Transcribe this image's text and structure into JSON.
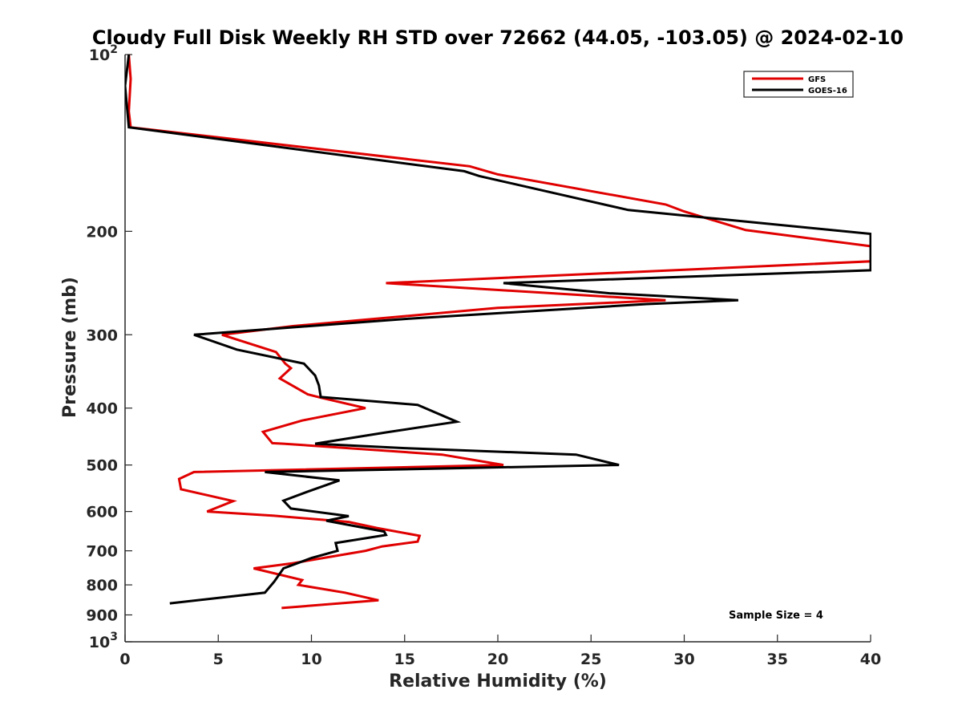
{
  "chart_data": {
    "type": "line",
    "title": "Cloudy Full Disk Weekly RH STD over 72662 (44.05, -103.05) @ 2024-02-10",
    "xlabel": "Relative Humidity (%)",
    "ylabel": "Pressure (mb)",
    "xlim": [
      0,
      40
    ],
    "ylim": [
      100,
      1000
    ],
    "y_scale": "log",
    "y_reversed": true,
    "x_ticks": [
      "0",
      "5",
      "10",
      "15",
      "20",
      "25",
      "30",
      "35",
      "40"
    ],
    "y_ticks": [
      {
        "value": 100,
        "base": "10",
        "exp": "2"
      },
      {
        "value": 200,
        "label": "200"
      },
      {
        "value": 300,
        "label": "300"
      },
      {
        "value": 400,
        "label": "400"
      },
      {
        "value": 500,
        "label": "500"
      },
      {
        "value": 600,
        "label": "600"
      },
      {
        "value": 700,
        "label": "700"
      },
      {
        "value": 800,
        "label": "800"
      },
      {
        "value": 900,
        "label": "900"
      },
      {
        "value": 1000,
        "base": "10",
        "exp": "3"
      }
    ],
    "legend_position": "top-right",
    "annotation": "Sample Size = 4",
    "series": [
      {
        "name": "GFS",
        "color": "#e00000",
        "points": [
          [
            0.2,
            100
          ],
          [
            0.3,
            110
          ],
          [
            0.2,
            125
          ],
          [
            0.3,
            133
          ],
          [
            18.5,
            155
          ],
          [
            20.0,
            160
          ],
          [
            29.0,
            180
          ],
          [
            30.0,
            185
          ],
          [
            33.3,
            199
          ],
          [
            40.0,
            212
          ],
          [
            40.0,
            225
          ],
          [
            14.0,
            245
          ],
          [
            29.0,
            262
          ],
          [
            20.0,
            270
          ],
          [
            9.0,
            290
          ],
          [
            5.2,
            300
          ],
          [
            8.1,
            321
          ],
          [
            8.6,
            336
          ],
          [
            8.9,
            342
          ],
          [
            8.3,
            356
          ],
          [
            9.8,
            379
          ],
          [
            10.5,
            384
          ],
          [
            12.9,
            400
          ],
          [
            9.5,
            420
          ],
          [
            7.4,
            439
          ],
          [
            7.9,
            459
          ],
          [
            8.5,
            460
          ],
          [
            17.0,
            480
          ],
          [
            20.3,
            500
          ],
          [
            3.7,
            514
          ],
          [
            2.9,
            528
          ],
          [
            3.0,
            550
          ],
          [
            5.8,
            576
          ],
          [
            4.4,
            600
          ],
          [
            8.0,
            610
          ],
          [
            12.0,
            625
          ],
          [
            13.5,
            640
          ],
          [
            15.8,
            660
          ],
          [
            15.7,
            675
          ],
          [
            13.8,
            688
          ],
          [
            12.9,
            700
          ],
          [
            9.0,
            735
          ],
          [
            6.9,
            750
          ],
          [
            9.5,
            785
          ],
          [
            9.3,
            800
          ],
          [
            11.8,
            825
          ],
          [
            13.6,
            850
          ],
          [
            8.4,
            876
          ]
        ]
      },
      {
        "name": "GOES-16",
        "color": "#000000",
        "points": [
          [
            0.2,
            100
          ],
          [
            0.0,
            113
          ],
          [
            0.2,
            133
          ],
          [
            18.2,
            158
          ],
          [
            19.0,
            161
          ],
          [
            27.0,
            184
          ],
          [
            40.0,
            202
          ],
          [
            40.0,
            233
          ],
          [
            20.3,
            245
          ],
          [
            26.0,
            255
          ],
          [
            32.9,
            262
          ],
          [
            28.0,
            266
          ],
          [
            15.0,
            282
          ],
          [
            3.7,
            300
          ],
          [
            6.0,
            318
          ],
          [
            9.6,
            336
          ],
          [
            10.2,
            352
          ],
          [
            10.4,
            366
          ],
          [
            10.5,
            383
          ],
          [
            15.7,
            395
          ],
          [
            17.8,
            422
          ],
          [
            14.0,
            440
          ],
          [
            10.2,
            460
          ],
          [
            15.0,
            468
          ],
          [
            24.2,
            480
          ],
          [
            26.5,
            500
          ],
          [
            7.5,
            514
          ],
          [
            11.5,
            531
          ],
          [
            9.8,
            555
          ],
          [
            8.5,
            575
          ],
          [
            8.9,
            593
          ],
          [
            12.0,
            611
          ],
          [
            10.8,
            622
          ],
          [
            13.9,
            649
          ],
          [
            14.0,
            658
          ],
          [
            11.3,
            679
          ],
          [
            11.4,
            700
          ],
          [
            10.0,
            720
          ],
          [
            8.5,
            750
          ],
          [
            8.0,
            790
          ],
          [
            7.5,
            825
          ],
          [
            2.4,
            860
          ]
        ]
      }
    ]
  }
}
